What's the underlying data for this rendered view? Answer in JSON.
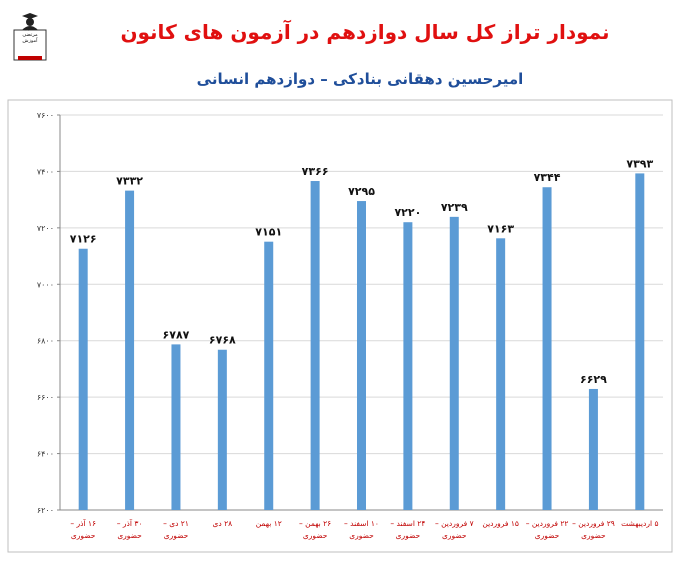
{
  "header": {
    "title": "نمودار تراز کل سال دوازدهم در آزمون های کانون",
    "subtitle": "امیرحسین دهقانی بنادکی – دوازدهم انسانی",
    "logo_text": [
      "مکتبی",
      "مرتضی",
      "آموزش"
    ]
  },
  "colors": {
    "bar": "#5b9bd5",
    "title": "#e01010",
    "subtitle": "#1f4e9a",
    "xlabel": "#c00000",
    "grid": "#d9d9d9"
  },
  "chart_data": {
    "type": "bar",
    "title": "نمودار تراز کل سال دوازدهم در آزمون های کانون",
    "subtitle": "امیرحسین دهقانی بنادکی – دوازدهم انسانی",
    "xlabel": "",
    "ylabel": "",
    "ylim": [
      6200,
      7600
    ],
    "yticks": [
      6200,
      6400,
      6600,
      6800,
      7000,
      7200,
      7400,
      7600
    ],
    "ytick_labels": [
      "۶۲۰۰",
      "۶۴۰۰",
      "۶۶۰۰",
      "۶۸۰۰",
      "۷۰۰۰",
      "۷۲۰۰",
      "۷۴۰۰",
      "۷۶۰۰"
    ],
    "grid": "horizontal",
    "legend": "none",
    "categories": [
      [
        "۱۶ آذر –",
        "حضوری"
      ],
      [
        "۳۰ آذر –",
        "حضوری"
      ],
      [
        "۲۱ دی –",
        "حضوری"
      ],
      [
        "۲۸ دی"
      ],
      [
        "۱۲ بهمن"
      ],
      [
        "۲۶ بهمن –",
        "حضوری"
      ],
      [
        "۱۰ اسفند –",
        "حضوری"
      ],
      [
        "۲۴ اسفند –",
        "حضوری"
      ],
      [
        "۷ فروردین –",
        "حضوری"
      ],
      [
        "۱۵ فروردین"
      ],
      [
        "۲۲ فروردین –",
        "حضوری"
      ],
      [
        "۲۹ فروردین –",
        "حضوری"
      ],
      [
        "۵ اردیبهشت"
      ]
    ],
    "values": [
      7126,
      7332,
      6787,
      6768,
      7151,
      7366,
      7295,
      7220,
      7239,
      7163,
      7344,
      6629,
      7393
    ],
    "value_labels": [
      "۷۱۲۶",
      "۷۳۳۲",
      "۶۷۸۷",
      "۶۷۶۸",
      "۷۱۵۱",
      "۷۳۶۶",
      "۷۲۹۵",
      "۷۲۲۰",
      "۷۲۳۹",
      "۷۱۶۳",
      "۷۳۴۴",
      "۶۶۲۹",
      "۷۳۹۳"
    ]
  }
}
